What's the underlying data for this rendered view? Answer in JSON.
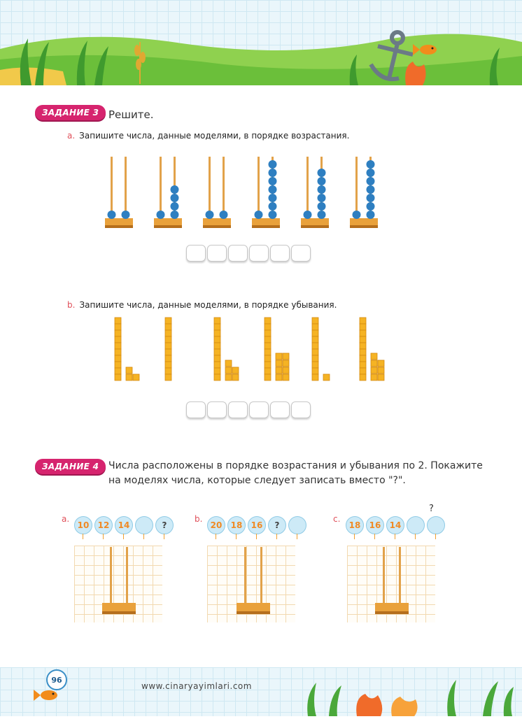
{
  "task3": {
    "badge": "ЗАДАНИЕ 3",
    "title": "Решите.",
    "part_a": {
      "letter": "a.",
      "text": "Запишите числа, данные моделями, в порядке возрастания.",
      "abaci": [
        {
          "tens": 1,
          "ones": 1
        },
        {
          "tens": 1,
          "ones": 4
        },
        {
          "tens": 1,
          "ones": 1
        },
        {
          "tens": 1,
          "ones": 7
        },
        {
          "tens": 1,
          "ones": 6
        },
        {
          "tens": 1,
          "ones": 7
        }
      ]
    },
    "part_b": {
      "letter": "b.",
      "text": "Запишите числа, данные моделями, в порядке убывания.",
      "blocks": [
        {
          "tens": 1,
          "ones": 3
        },
        {
          "tens": 1,
          "ones": 0
        },
        {
          "tens": 1,
          "ones": 5
        },
        {
          "tens": 1,
          "ones": 8
        },
        {
          "tens": 1,
          "ones": 1
        },
        {
          "tens": 1,
          "ones": 7
        }
      ]
    }
  },
  "task4": {
    "badge": "ЗАДАНИЕ 4",
    "text_line1": "Числа расположены в порядке возрастания и убывания по 2. Покажите",
    "text_line2": "на моделях числа, которые следует записать вместо \"?\".",
    "groups": [
      {
        "letter": "a.",
        "balloons": [
          "10",
          "12",
          "14",
          "",
          "?"
        ]
      },
      {
        "letter": "b.",
        "balloons": [
          "20",
          "18",
          "16",
          "?",
          ""
        ]
      },
      {
        "letter": "c.",
        "balloons": [
          "18",
          "16",
          "14",
          "",
          ""
        ],
        "floating_q": "?"
      }
    ]
  },
  "footer": {
    "page": "96",
    "site": "www.cinaryayimlari.com"
  },
  "colors": {
    "badge": "#d6246e",
    "bead": "#2e7fc1",
    "rod": "#e2a24a",
    "cube": "#f5b324"
  }
}
